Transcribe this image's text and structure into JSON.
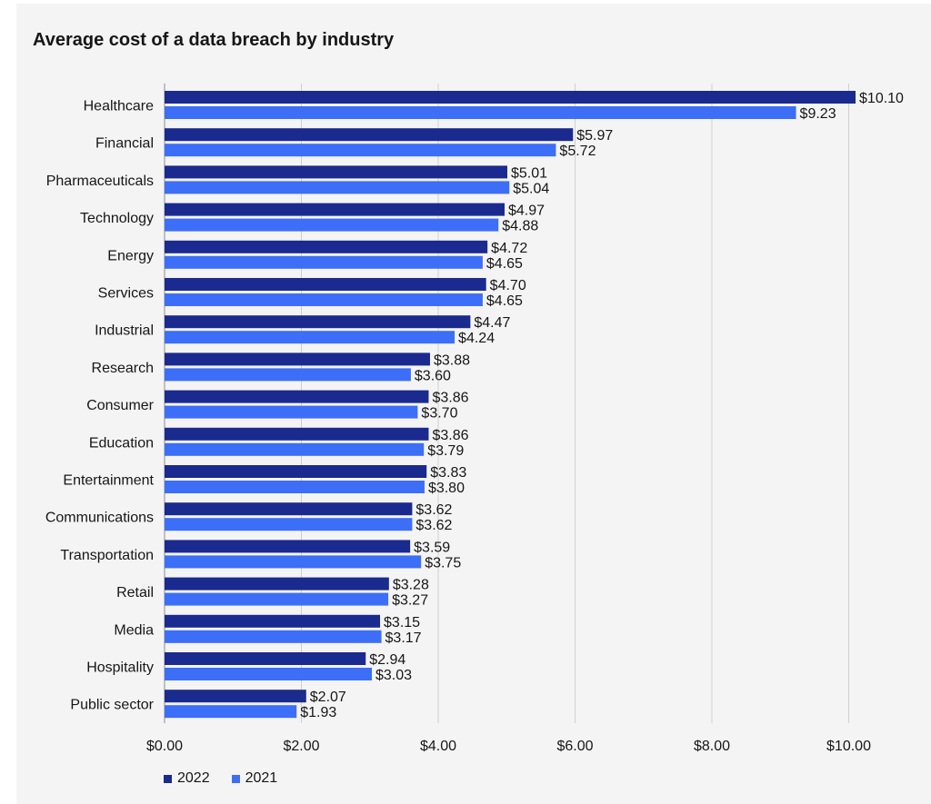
{
  "chart_data": {
    "type": "bar",
    "orientation": "horizontal",
    "title": "Average cost of a data breach by industry",
    "xlabel": "",
    "ylabel": "",
    "xlim": [
      0,
      10.5
    ],
    "x_ticks": [
      0,
      2,
      4,
      6,
      8,
      10
    ],
    "x_tick_labels": [
      "$0.00",
      "$2.00",
      "$4.00",
      "$6.00",
      "$8.00",
      "$10.00"
    ],
    "grid": "vertical",
    "legend_position": "bottom-left",
    "categories": [
      "Healthcare",
      "Financial",
      "Pharmaceuticals",
      "Technology",
      "Energy",
      "Services",
      "Industrial",
      "Research",
      "Consumer",
      "Education",
      "Entertainment",
      "Communications",
      "Transportation",
      "Retail",
      "Media",
      "Hospitality",
      "Public sector"
    ],
    "series": [
      {
        "name": "2022",
        "color": "#1a2a8f",
        "values": [
          10.1,
          5.97,
          5.01,
          4.97,
          4.72,
          4.7,
          4.47,
          3.88,
          3.86,
          3.86,
          3.83,
          3.62,
          3.59,
          3.28,
          3.15,
          2.94,
          2.07
        ],
        "labels": [
          "$10.10",
          "$5.97",
          "$5.01",
          "$4.97",
          "$4.72",
          "$4.70",
          "$4.47",
          "$3.88",
          "$3.86",
          "$3.86",
          "$3.83",
          "$3.62",
          "$3.59",
          "$3.28",
          "$3.15",
          "$2.94",
          "$2.07"
        ]
      },
      {
        "name": "2021",
        "color": "#3d6ef7",
        "values": [
          9.23,
          5.72,
          5.04,
          4.88,
          4.65,
          4.65,
          4.24,
          3.6,
          3.7,
          3.79,
          3.8,
          3.62,
          3.75,
          3.27,
          3.17,
          3.03,
          1.93
        ],
        "labels": [
          "$9.23",
          "$5.72",
          "$5.04",
          "$4.88",
          "$4.65",
          "$4.65",
          "$4.24",
          "$3.60",
          "$3.70",
          "$3.79",
          "$3.80",
          "$3.62",
          "$3.75",
          "$3.27",
          "$3.17",
          "$3.03",
          "$1.93"
        ]
      }
    ]
  }
}
